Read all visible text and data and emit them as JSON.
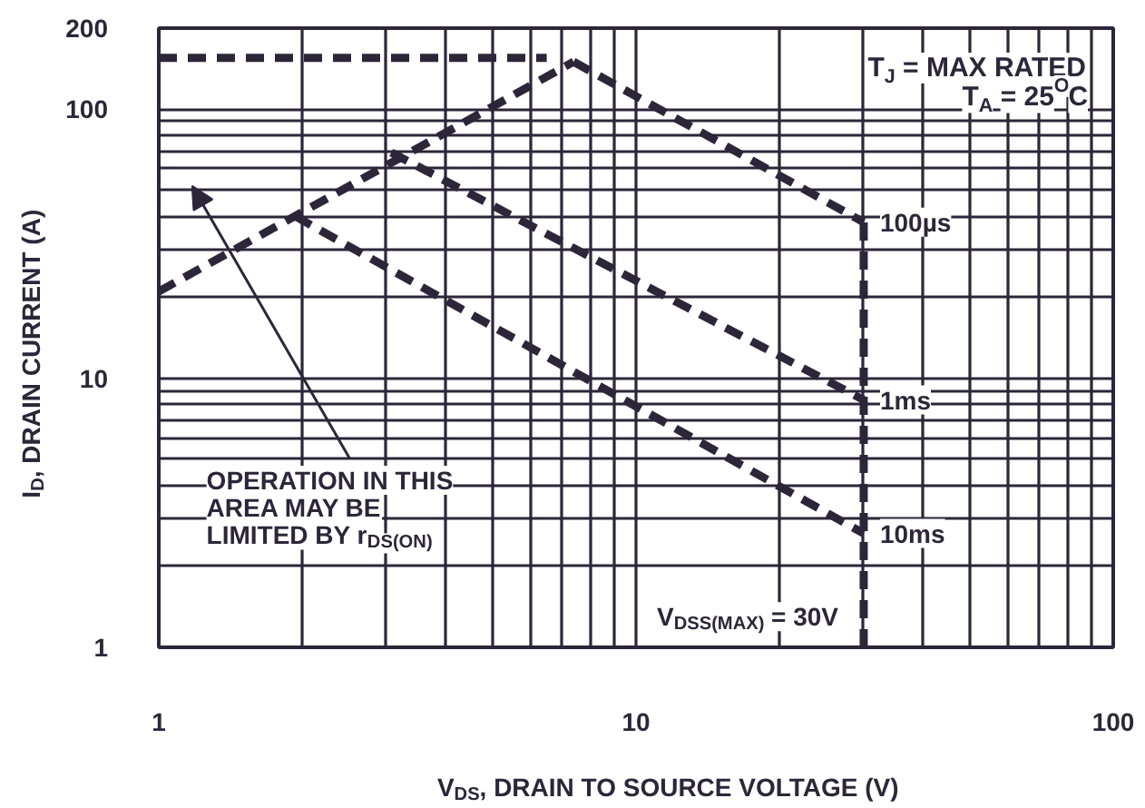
{
  "chart_data": {
    "type": "line",
    "xlabel": "V$_{DS}$, DRAIN TO SOURCE VOLTAGE (V)",
    "ylabel": "I$_{D}$, DRAIN CURRENT (A)",
    "log": "xy",
    "xlim": [
      1,
      100
    ],
    "ylim": [
      1,
      200
    ],
    "xticks": [
      1,
      {
        "value": 2,
        "label": null
      },
      {
        "value": 3,
        "label": null
      },
      {
        "value": 4,
        "label": null
      },
      {
        "value": 5,
        "label": null
      },
      {
        "value": 6,
        "label": null
      },
      {
        "value": 7,
        "label": null
      },
      {
        "value": 8,
        "label": null
      },
      {
        "value": 9,
        "label": null
      },
      10,
      {
        "value": 20,
        "label": null
      },
      {
        "value": 30,
        "label": null
      },
      {
        "value": 40,
        "label": null
      },
      {
        "value": 50,
        "label": null
      },
      {
        "value": 60,
        "label": null
      },
      {
        "value": 70,
        "label": null
      },
      {
        "value": 80,
        "label": null
      },
      {
        "value": 90,
        "label": null
      },
      100
    ],
    "yticks": [
      1,
      {
        "value": 2,
        "label": null
      },
      {
        "value": 3,
        "label": null
      },
      {
        "value": 4,
        "label": null
      },
      {
        "value": 5,
        "label": null
      },
      {
        "value": 6,
        "label": null
      },
      {
        "value": 7,
        "label": null
      },
      {
        "value": 8,
        "label": null
      },
      {
        "value": 9,
        "label": null
      },
      10,
      {
        "value": 20,
        "label": null
      },
      {
        "value": 30,
        "label": null
      },
      {
        "value": 40,
        "label": null
      },
      {
        "value": 50,
        "label": null
      },
      {
        "value": 60,
        "label": null
      },
      {
        "value": 70,
        "label": null
      },
      {
        "value": 80,
        "label": null
      },
      {
        "value": 90,
        "label": null
      },
      100,
      200
    ],
    "grid": true,
    "line_style": "dashed",
    "series": [
      {
        "color": "#2d2639",
        "x": [
          1,
          6.5
        ],
        "values": [
          155,
          155
        ]
      },
      {
        "color": "#2d2639",
        "x": [
          1,
          7.4
        ],
        "values": [
          21,
          150
        ]
      },
      {
        "name": "100µs",
        "color": "#2d2639",
        "x": [
          7.4,
          30
        ],
        "values": [
          150,
          38
        ]
      },
      {
        "name": "1ms",
        "color": "#2d2639",
        "x": [
          3.07,
          30
        ],
        "values": [
          69,
          8.3
        ]
      },
      {
        "name": "10ms",
        "color": "#2d2639",
        "x": [
          1.93,
          30
        ],
        "values": [
          40,
          2.65
        ]
      },
      {
        "color": "#2d2639",
        "x": [
          30,
          30
        ],
        "values": [
          1,
          38
        ]
      }
    ],
    "annotations": [
      "T$_{J}$ = MAX RATED\nT$_{A}$ = 25$^{O}$C",
      "OPERATION IN THIS\nAREA MAY BE\nLIMITED BY r$_{DS(ON)}$",
      {
        "text": "V$_{DSS(MAX)}$ = 30V",
        "x": 30,
        "y": 1.3
      }
    ]
  }
}
